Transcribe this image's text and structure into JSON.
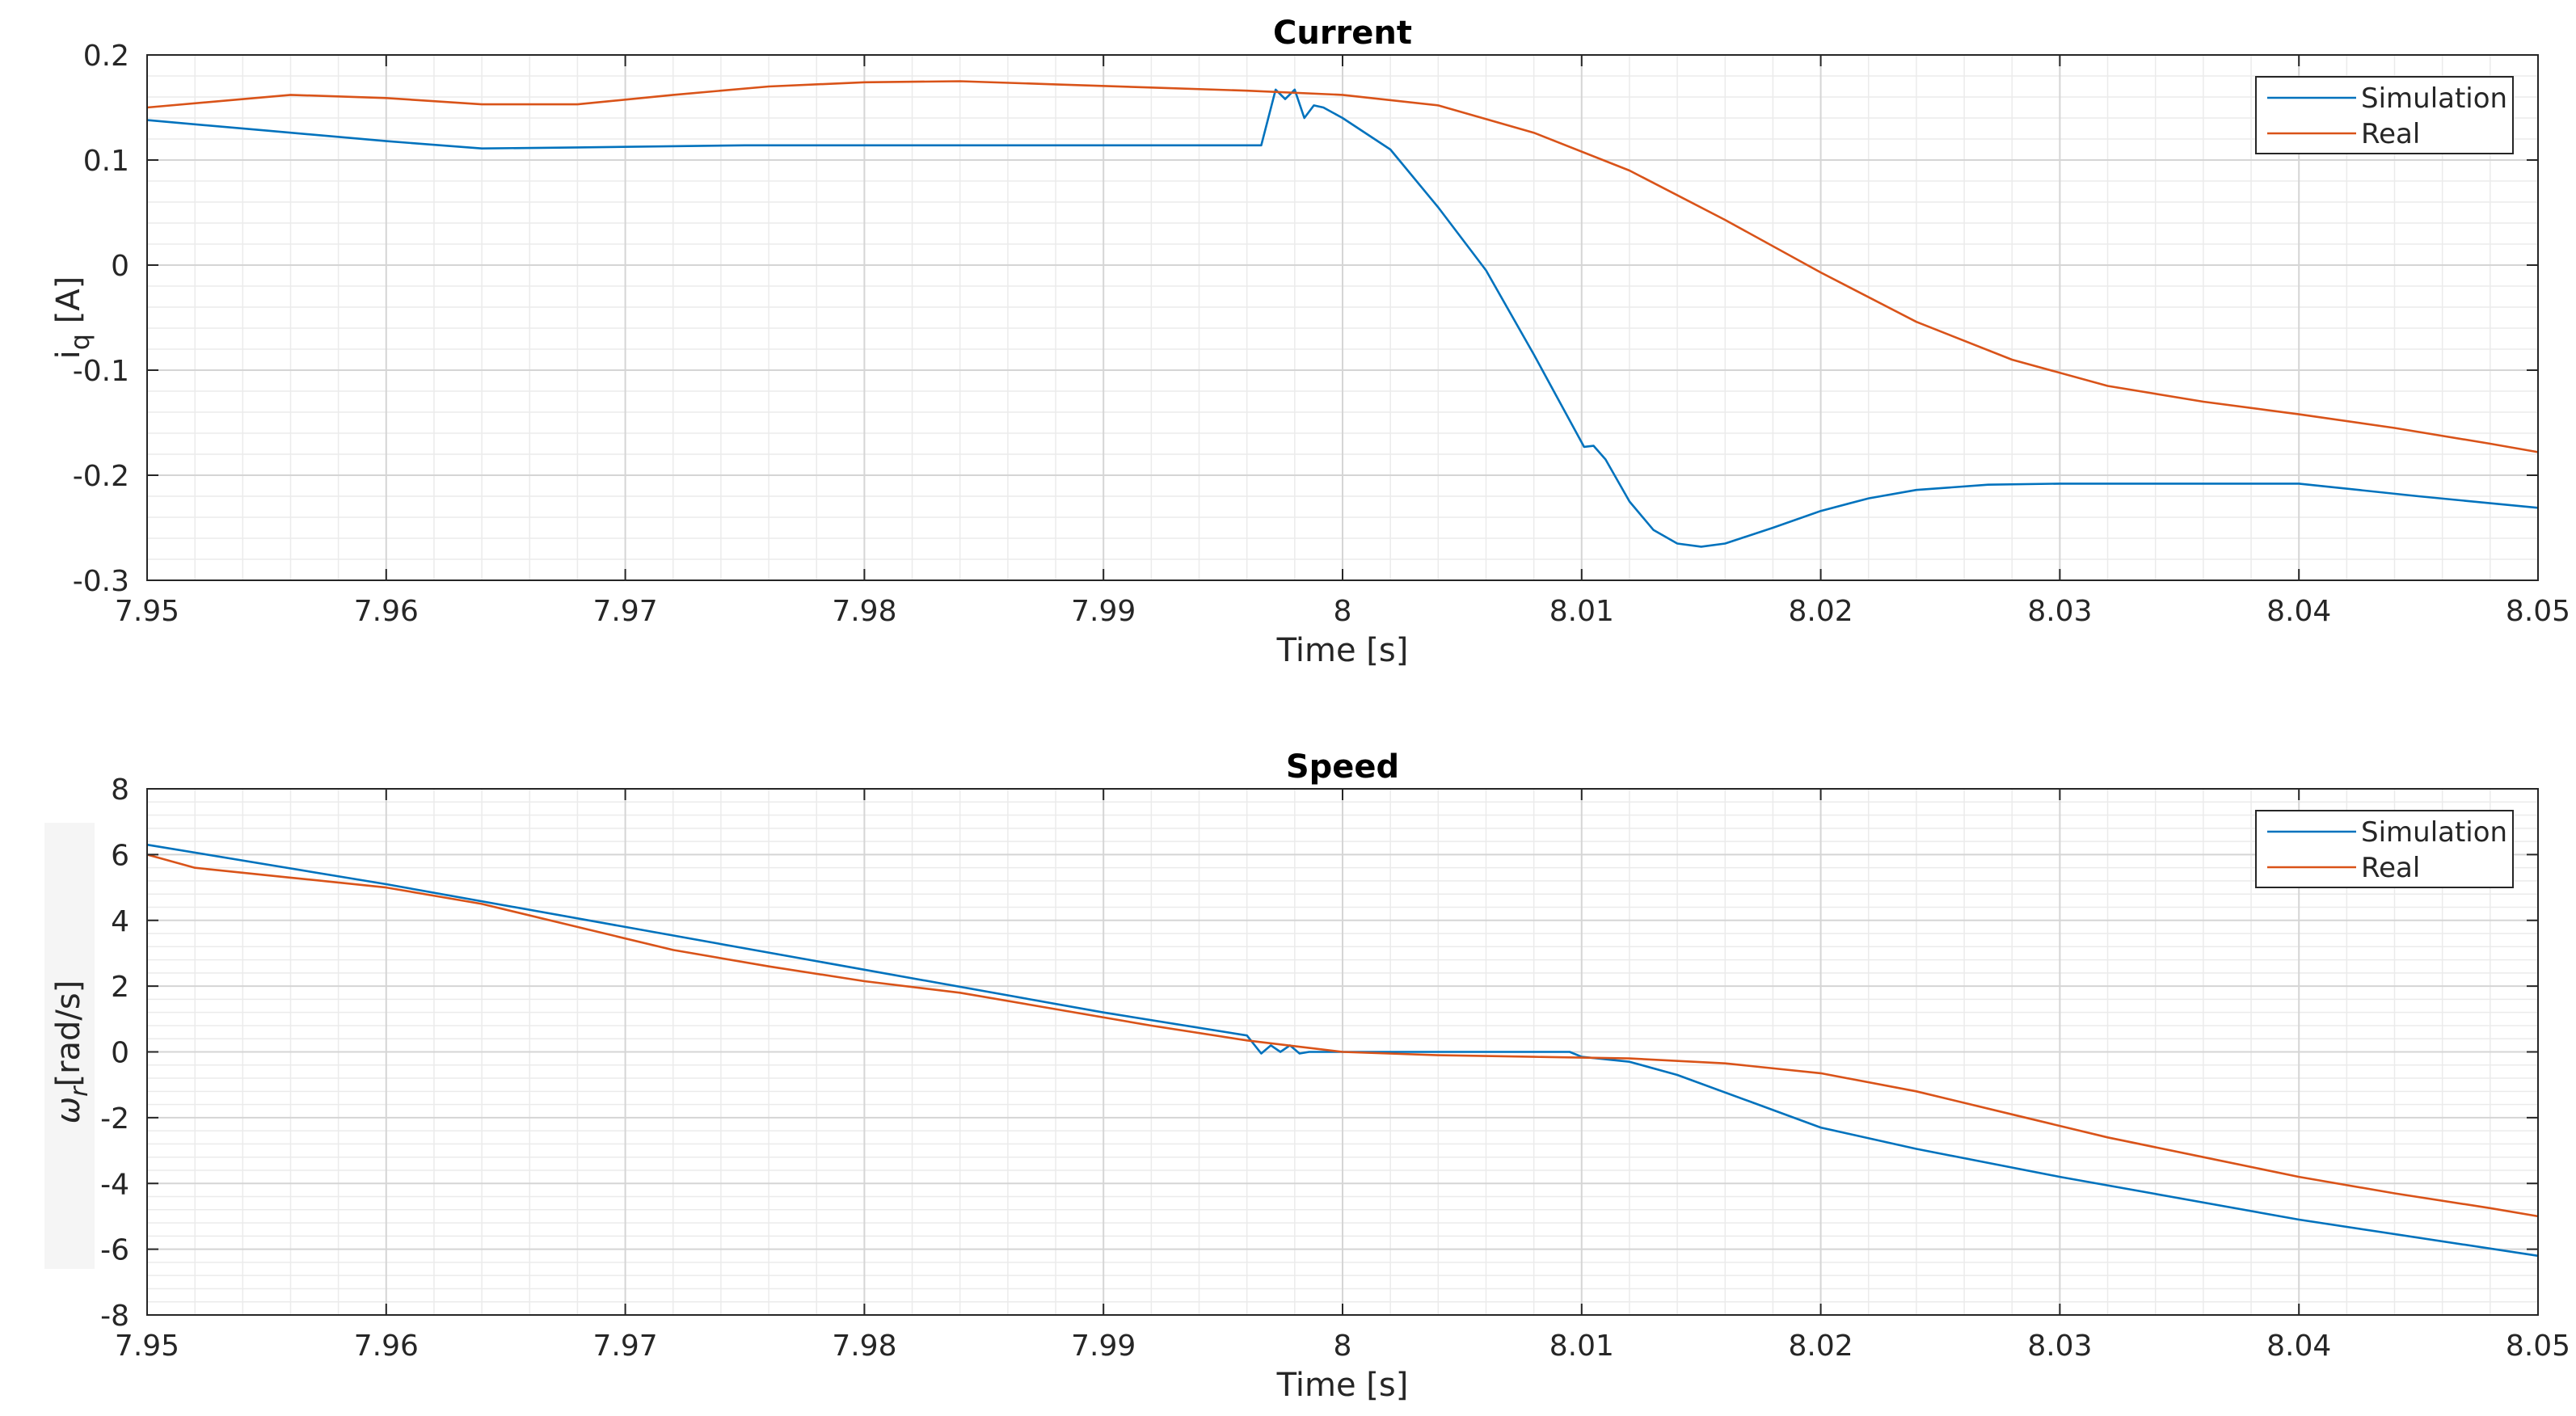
{
  "chart_data": [
    {
      "type": "line",
      "title": "Current",
      "xlabel": "Time [s]",
      "ylabel": "i_q [A]",
      "ylabel_main": "i",
      "ylabel_sub": "q",
      "ylabel_unit": " [A]",
      "xlim": [
        7.95,
        8.05
      ],
      "ylim": [
        -0.3,
        0.2
      ],
      "xticks": [
        7.95,
        7.96,
        7.97,
        7.98,
        7.99,
        8.0,
        8.01,
        8.02,
        8.03,
        8.04,
        8.05
      ],
      "xtick_labels": [
        "7.95",
        "7.96",
        "7.97",
        "7.98",
        "7.99",
        "8",
        "8.01",
        "8.02",
        "8.03",
        "8.04",
        "8.05"
      ],
      "yticks": [
        -0.3,
        -0.2,
        -0.1,
        0,
        0.1,
        0.2
      ],
      "ytick_labels": [
        "-0.3",
        "-0.2",
        "-0.1",
        "0",
        "0.1",
        "0.2"
      ],
      "grid": true,
      "minor_grid": true,
      "legend": "top-right",
      "series": [
        {
          "name": "Simulation",
          "color": "#0072BD",
          "x": [
            7.95,
            7.955,
            7.96,
            7.964,
            7.968,
            7.975,
            7.98,
            7.99,
            7.9966,
            7.9972,
            7.9976,
            7.998,
            7.9984,
            7.9988,
            7.9992,
            8.0,
            8.002,
            8.004,
            8.006,
            8.008,
            8.0101,
            8.0105,
            8.011,
            8.012,
            8.013,
            8.014,
            8.015,
            8.016,
            8.018,
            8.02,
            8.022,
            8.024,
            8.027,
            8.03,
            8.035,
            8.04,
            8.045,
            8.05
          ],
          "y": [
            0.138,
            0.128,
            0.118,
            0.111,
            0.112,
            0.114,
            0.114,
            0.114,
            0.114,
            0.167,
            0.158,
            0.167,
            0.14,
            0.152,
            0.15,
            0.14,
            0.11,
            0.055,
            -0.005,
            -0.085,
            -0.173,
            -0.172,
            -0.185,
            -0.225,
            -0.252,
            -0.265,
            -0.268,
            -0.265,
            -0.25,
            -0.234,
            -0.222,
            -0.214,
            -0.209,
            -0.208,
            -0.208,
            -0.208,
            -0.22,
            -0.231
          ]
        },
        {
          "name": "Real",
          "color": "#D95319",
          "x": [
            7.95,
            7.956,
            7.96,
            7.964,
            7.968,
            7.972,
            7.976,
            7.98,
            7.984,
            7.988,
            7.992,
            7.996,
            8.0,
            8.004,
            8.008,
            8.012,
            8.016,
            8.02,
            8.024,
            8.028,
            8.032,
            8.036,
            8.04,
            8.044,
            8.048,
            8.05
          ],
          "y": [
            0.15,
            0.162,
            0.159,
            0.153,
            0.153,
            0.162,
            0.17,
            0.174,
            0.175,
            0.172,
            0.169,
            0.166,
            0.162,
            0.152,
            0.126,
            0.09,
            0.043,
            -0.007,
            -0.054,
            -0.09,
            -0.115,
            -0.13,
            -0.142,
            -0.155,
            -0.17,
            -0.178
          ]
        }
      ]
    },
    {
      "type": "line",
      "title": "Speed",
      "xlabel": "Time [s]",
      "ylabel": "ω_r[rad/s]",
      "ylabel_main": "ω",
      "ylabel_sub": "r",
      "ylabel_unit": "[rad/s]",
      "xlim": [
        7.95,
        8.05
      ],
      "ylim": [
        -8,
        8
      ],
      "xticks": [
        7.95,
        7.96,
        7.97,
        7.98,
        7.99,
        8.0,
        8.01,
        8.02,
        8.03,
        8.04,
        8.05
      ],
      "xtick_labels": [
        "7.95",
        "7.96",
        "7.97",
        "7.98",
        "7.99",
        "8",
        "8.01",
        "8.02",
        "8.03",
        "8.04",
        "8.05"
      ],
      "yticks": [
        -8,
        -6,
        -4,
        -2,
        0,
        2,
        4,
        6,
        8
      ],
      "ytick_labels": [
        "-8",
        "-6",
        "-4",
        "-2",
        "0",
        "2",
        "4",
        "6",
        "8"
      ],
      "grid": true,
      "minor_grid": true,
      "legend": "top-right",
      "series": [
        {
          "name": "Simulation",
          "color": "#0072BD",
          "x": [
            7.95,
            7.96,
            7.97,
            7.98,
            7.99,
            7.996,
            7.9966,
            7.997,
            7.9974,
            7.9978,
            7.9982,
            7.9986,
            8.0,
            8.005,
            8.0095,
            8.01,
            8.012,
            8.014,
            8.017,
            8.02,
            8.024,
            8.03,
            8.04,
            8.05
          ],
          "y": [
            6.3,
            5.1,
            3.8,
            2.5,
            1.2,
            0.5,
            -0.05,
            0.2,
            0.0,
            0.2,
            -0.05,
            0.0,
            0.0,
            0.0,
            0.0,
            -0.15,
            -0.3,
            -0.7,
            -1.5,
            -2.3,
            -2.95,
            -3.8,
            -5.1,
            -6.2
          ]
        },
        {
          "name": "Real",
          "color": "#D95319",
          "x": [
            7.95,
            7.952,
            7.956,
            7.96,
            7.964,
            7.968,
            7.972,
            7.976,
            7.98,
            7.984,
            7.988,
            7.992,
            7.996,
            8.0,
            8.004,
            8.008,
            8.012,
            8.016,
            8.02,
            8.024,
            8.028,
            8.032,
            8.036,
            8.04,
            8.044,
            8.048,
            8.05
          ],
          "y": [
            6.0,
            5.6,
            5.3,
            5.0,
            4.5,
            3.8,
            3.1,
            2.6,
            2.15,
            1.8,
            1.3,
            0.8,
            0.35,
            0.0,
            -0.1,
            -0.15,
            -0.2,
            -0.35,
            -0.65,
            -1.2,
            -1.9,
            -2.6,
            -3.2,
            -3.8,
            -4.3,
            -4.75,
            -5.0
          ]
        }
      ]
    }
  ]
}
